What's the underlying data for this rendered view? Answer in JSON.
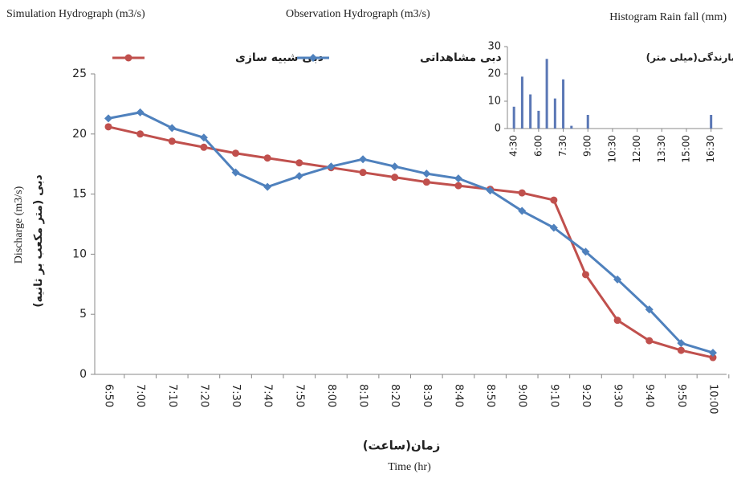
{
  "chart_data": [
    {
      "type": "line",
      "annotations": [
        "Simulation Hydrograph (m3/s)",
        "Observation Hydrograph (m3/s)"
      ],
      "y_label": "Discharge (m3/s)",
      "y_label_fa": "دبی (متر مکعب بر ثانیه)",
      "x_label_fa": "زمان(ساعت)",
      "x_label": "Time (hr)",
      "categories": [
        "6:50",
        "7:00",
        "7:10",
        "7:20",
        "7:30",
        "7:40",
        "7:50",
        "8:00",
        "8:10",
        "8:20",
        "8:30",
        "8:40",
        "8:50",
        "9:00",
        "9:10",
        "9:20",
        "9:30",
        "9:40",
        "9:50",
        "10:00"
      ],
      "series": [
        {
          "name": "دبی شبیه سازی",
          "color": "#c0504d",
          "marker": "circle",
          "values": [
            20.6,
            20.0,
            19.4,
            18.9,
            18.4,
            18.0,
            17.6,
            17.2,
            16.8,
            16.4,
            16.0,
            15.7,
            15.4,
            15.1,
            14.5,
            8.3,
            4.5,
            2.8,
            2.0,
            1.4
          ]
        },
        {
          "name": "دبی مشاهداتی",
          "color": "#4f81bd",
          "marker": "diamond",
          "values": [
            21.3,
            21.8,
            20.5,
            19.7,
            16.8,
            15.6,
            16.5,
            17.3,
            17.9,
            17.3,
            16.7,
            16.3,
            15.3,
            13.6,
            12.2,
            10.2,
            7.9,
            5.4,
            2.6,
            1.8
          ]
        }
      ],
      "ylim": [
        0,
        25
      ],
      "yticks": [
        0,
        5,
        10,
        15,
        20,
        25
      ],
      "legend": "top",
      "grid": false
    },
    {
      "type": "bar",
      "title": "Histogram Rain fall (mm)",
      "y_label": "بارندگی(میلی متر)",
      "x": [
        4.5,
        5.0,
        5.5,
        6.0,
        6.5,
        7.0,
        7.5,
        8.0,
        9.0,
        16.5
      ],
      "values": [
        8,
        19,
        12.5,
        6.5,
        25.5,
        11,
        18,
        1,
        5,
        5
      ],
      "color": "#5a77b5",
      "xlim": [
        4.1,
        17.2
      ],
      "xticks": [
        {
          "value": 4.5,
          "label": "4:30"
        },
        {
          "value": 6,
          "label": "6:00"
        },
        {
          "value": 7.5,
          "label": "7:30"
        },
        {
          "value": 9,
          "label": "9:00"
        },
        {
          "value": 10.5,
          "label": "10:30"
        },
        {
          "value": 12,
          "label": "12:00"
        },
        {
          "value": 13.5,
          "label": "13:30"
        },
        {
          "value": 15,
          "label": "15:00"
        },
        {
          "value": 16.5,
          "label": "16:30"
        }
      ],
      "ylim": [
        0,
        30
      ],
      "yticks": [
        0,
        10,
        20,
        30
      ]
    }
  ]
}
